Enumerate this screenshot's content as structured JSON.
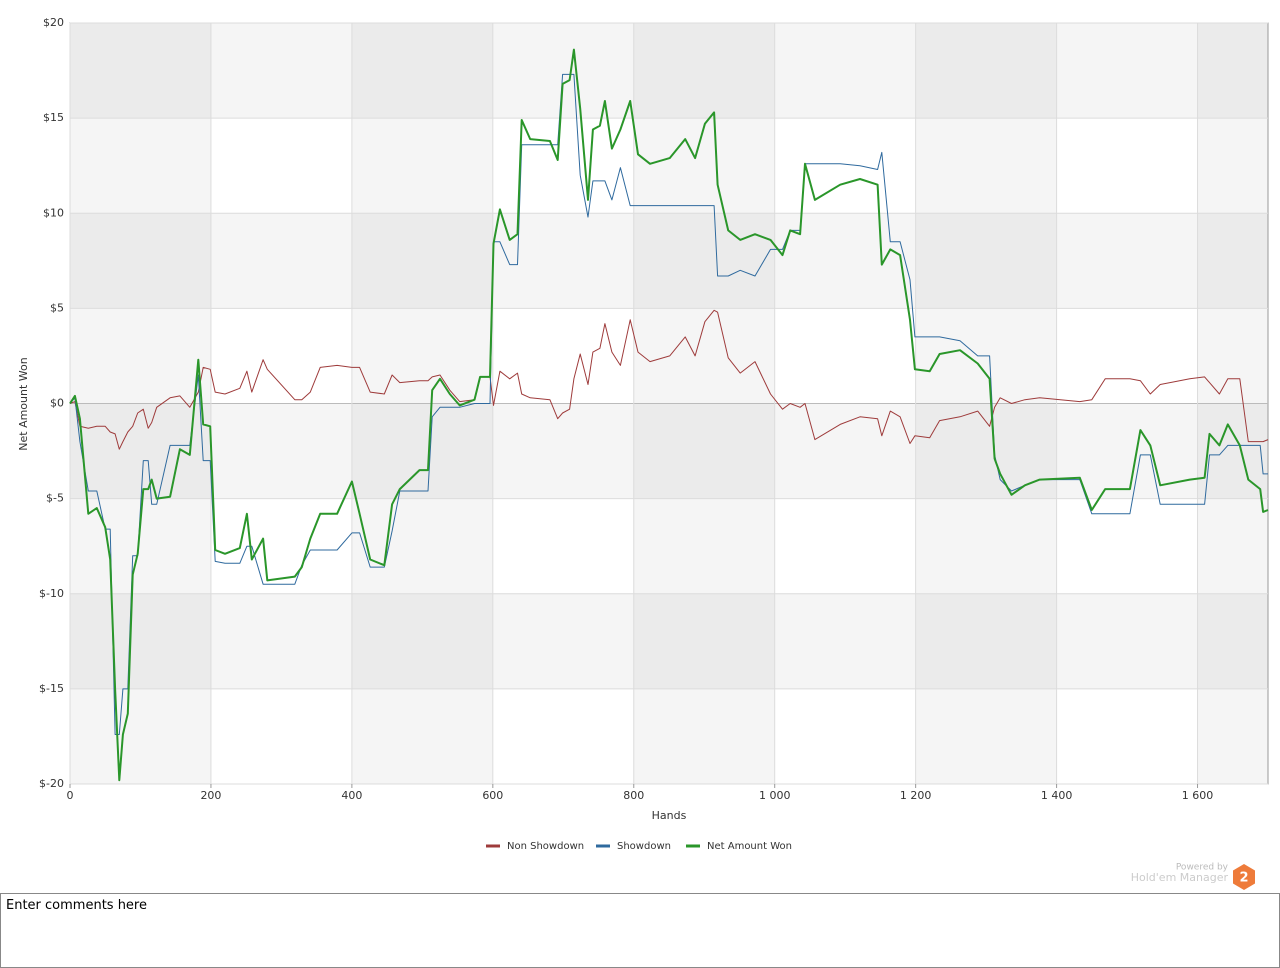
{
  "chart_data": {
    "type": "line",
    "x_label": "Hands",
    "y_label": "Net Amount Won",
    "x": [
      0,
      7,
      14,
      26,
      38,
      50,
      57,
      64,
      70,
      75,
      82,
      89,
      96,
      104,
      111,
      116,
      123,
      142,
      156,
      170,
      182,
      189,
      199,
      206,
      220,
      241,
      251,
      258,
      274,
      280,
      319,
      329,
      341,
      355,
      379,
      400,
      411,
      426,
      446,
      457,
      468,
      496,
      508,
      514,
      525,
      539,
      553,
      574,
      582,
      596,
      601,
      610,
      624,
      635,
      641,
      653,
      681,
      692,
      699,
      709,
      715,
      724,
      735,
      742,
      752,
      759,
      769,
      781,
      795,
      806,
      823,
      851,
      873,
      887,
      901,
      914,
      919,
      934,
      951,
      972,
      994,
      1011,
      1022,
      1036,
      1043,
      1057,
      1093,
      1121,
      1146,
      1152,
      1164,
      1178,
      1192,
      1199,
      1220,
      1234,
      1263,
      1288,
      1305,
      1312,
      1320,
      1336,
      1355,
      1376,
      1433,
      1450,
      1469,
      1504,
      1519,
      1533,
      1547,
      1589,
      1610,
      1617,
      1631,
      1643,
      1660,
      1672,
      1689,
      1693,
      1700
    ],
    "series": [
      {
        "name": "Non Showdown",
        "color": "#9e3b3b",
        "width": 1,
        "values": [
          0,
          0.1,
          -1.2,
          -1.3,
          -1.2,
          -1.2,
          -1.5,
          -1.6,
          -2.4,
          -2.0,
          -1.5,
          -1.2,
          -0.5,
          -0.3,
          -1.3,
          -1.0,
          -0.2,
          0.3,
          0.4,
          -0.2,
          0.6,
          1.9,
          1.8,
          0.6,
          0.5,
          0.8,
          1.7,
          0.6,
          2.3,
          1.8,
          0.2,
          0.2,
          0.6,
          1.9,
          2.0,
          1.9,
          1.9,
          0.6,
          0.5,
          1.5,
          1.1,
          1.2,
          1.2,
          1.4,
          1.5,
          0.7,
          0.1,
          0.2,
          1.4,
          1.4,
          -0.1,
          1.7,
          1.3,
          1.6,
          0.5,
          0.3,
          0.2,
          -0.8,
          -0.5,
          -0.3,
          1.3,
          2.6,
          1.0,
          2.7,
          2.9,
          4.2,
          2.7,
          2.0,
          4.4,
          2.7,
          2.2,
          2.5,
          3.5,
          2.5,
          4.3,
          4.9,
          4.8,
          2.4,
          1.6,
          2.2,
          0.5,
          -0.3,
          0,
          -0.2,
          0,
          -1.9,
          -1.1,
          -0.7,
          -0.8,
          -1.7,
          -0.4,
          -0.7,
          -2.1,
          -1.7,
          -1.8,
          -0.9,
          -0.7,
          -0.4,
          -1.2,
          -0.2,
          0.3,
          0,
          0.2,
          0.3,
          0.1,
          0.2,
          1.3,
          1.3,
          1.2,
          0.5,
          1.0,
          1.3,
          1.4,
          1.1,
          0.5,
          1.3,
          1.3,
          -2.0,
          -2,
          -2,
          -1.9
        ]
      },
      {
        "name": "Showdown",
        "color": "#2f6a9e",
        "width": 1,
        "values": [
          0,
          0.3,
          -2,
          -4.6,
          -4.6,
          -6.6,
          -6.6,
          -17.4,
          -17.4,
          -15,
          -15,
          -8,
          -8,
          -3,
          -3,
          -5.3,
          -5.3,
          -2.2,
          -2.2,
          -2.2,
          1.5,
          -3,
          -3,
          -8.3,
          -8.4,
          -8.4,
          -7.5,
          -7.5,
          -9.5,
          -9.5,
          -9.5,
          -8.5,
          -7.7,
          -7.7,
          -7.7,
          -6.8,
          -6.8,
          -8.6,
          -8.6,
          -6.7,
          -4.6,
          -4.6,
          -4.6,
          -0.7,
          -0.2,
          -0.2,
          -0.2,
          0,
          0,
          0,
          8.5,
          8.5,
          7.3,
          7.3,
          13.6,
          13.6,
          13.6,
          13.6,
          17.3,
          17.3,
          17.3,
          12,
          9.8,
          11.7,
          11.7,
          11.7,
          10.7,
          12.4,
          10.4,
          10.4,
          10.4,
          10.4,
          10.4,
          10.4,
          10.4,
          10.4,
          6.7,
          6.7,
          7,
          6.7,
          8.1,
          8.1,
          9.1,
          9.1,
          12.6,
          12.6,
          12.6,
          12.5,
          12.3,
          13.2,
          8.5,
          8.5,
          6.5,
          3.5,
          3.5,
          3.5,
          3.3,
          2.5,
          2.5,
          -2.7,
          -4,
          -4.6,
          -4.3,
          -4,
          -4,
          -5.8,
          -5.8,
          -5.8,
          -2.7,
          -2.7,
          -5.3,
          -5.3,
          -5.3,
          -2.7,
          -2.7,
          -2.2,
          -2.2,
          -2.2,
          -2.2,
          -3.7,
          -3.7
        ]
      },
      {
        "name": "Net Amount Won",
        "color": "#2a962a",
        "width": 2,
        "values": [
          0,
          0.4,
          -0.8,
          -5.8,
          -5.5,
          -6.5,
          -8.2,
          -15,
          -19.8,
          -17.4,
          -16.3,
          -9,
          -7.9,
          -4.5,
          -4.5,
          -4,
          -5,
          -4.9,
          -2.4,
          -2.7,
          2.3,
          -1.1,
          -1.2,
          -7.7,
          -7.9,
          -7.6,
          -5.8,
          -8.2,
          -7.1,
          -9.3,
          -9.1,
          -8.6,
          -7.1,
          -5.8,
          -5.8,
          -4.1,
          -5.8,
          -8.2,
          -8.5,
          -5.3,
          -4.5,
          -3.5,
          -3.5,
          0.7,
          1.3,
          0.5,
          -0.1,
          0.2,
          1.4,
          1.4,
          8.4,
          10.2,
          8.6,
          8.9,
          14.9,
          13.9,
          13.8,
          12.8,
          16.8,
          17,
          18.6,
          15.5,
          10.7,
          14.4,
          14.6,
          15.9,
          13.4,
          14.4,
          15.9,
          13.1,
          12.6,
          12.9,
          13.9,
          12.9,
          14.7,
          15.3,
          11.5,
          9.1,
          8.6,
          8.9,
          8.6,
          7.8,
          9.1,
          8.9,
          12.6,
          10.7,
          11.5,
          11.8,
          11.5,
          7.3,
          8.1,
          7.8,
          4.4,
          1.8,
          1.7,
          2.6,
          2.8,
          2.1,
          1.3,
          -2.9,
          -3.7,
          -4.8,
          -4.3,
          -4,
          -3.9,
          -5.6,
          -4.5,
          -4.5,
          -1.4,
          -2.2,
          -4.3,
          -4,
          -3.9,
          -1.6,
          -2.2,
          -1.1,
          -2.2,
          -4,
          -4.5,
          -5.7,
          -5.6
        ]
      }
    ],
    "xlim": [
      0,
      1700
    ],
    "xticks": [
      0,
      200,
      400,
      600,
      800,
      {
        "value": 1000,
        "label": "1 000"
      },
      {
        "value": 1200,
        "label": "1 200"
      },
      {
        "value": 1400,
        "label": "1 400"
      },
      {
        "value": 1600,
        "label": "1 600"
      }
    ],
    "ylim": [
      -20,
      20
    ],
    "yticks": [
      {
        "value": -20,
        "label": "$-20"
      },
      {
        "value": -15,
        "label": "$-15"
      },
      {
        "value": -10,
        "label": "$-10"
      },
      {
        "value": -5,
        "label": "$-5"
      },
      {
        "value": 0,
        "label": "$0"
      },
      {
        "value": 5,
        "label": "$5"
      },
      {
        "value": 10,
        "label": "$10"
      },
      {
        "value": 15,
        "label": "$15"
      },
      {
        "value": 20,
        "label": "$20"
      }
    ],
    "grid": true,
    "legend": "bottom"
  },
  "branding": {
    "powered_by": "Powered by",
    "product": "Hold'em Manager",
    "logo": "2"
  },
  "comments": {
    "placeholder": "Enter comments here"
  }
}
